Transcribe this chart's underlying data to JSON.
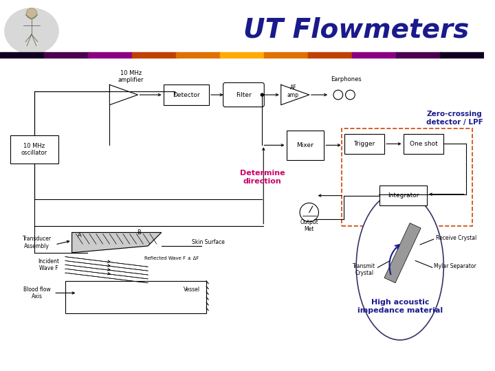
{
  "title": "UT Flowmeters",
  "title_color": "#1a1a8c",
  "title_fontsize": 28,
  "title_style": "italic",
  "title_weight": "bold",
  "bg_color": "#ffffff",
  "header_bar_colors_hex": [
    "#100020",
    "#4a0050",
    "#8b0080",
    "#c04000",
    "#e07000",
    "#ffaa00",
    "#e07000",
    "#c04000",
    "#8b0080",
    "#4a0050",
    "#100020"
  ],
  "zero_crossing_text": "Zero-crossing\ndetector / LPF",
  "zero_crossing_color": "#1a1a8c",
  "determine_direction_text": "Determine\ndirection",
  "determine_direction_color": "#cc0066",
  "high_acoustic_text": "High acoustic\nimpedance material",
  "high_acoustic_color": "#1a1a8c",
  "diagram_bg": "#f5f5f5"
}
